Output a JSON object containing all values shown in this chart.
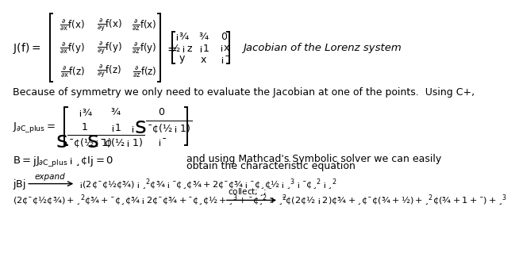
{
  "bg_color": "#ffffff",
  "title": "Jacobian of the Lorenz system",
  "line1_label": "$J(f)=$",
  "matrix1_entries": [
    [
      "$\\frac{\\partial}{\\partial x}f(x)$",
      "$\\frac{\\partial}{\\partial y}f(x)$",
      "$\\frac{\\partial}{\\partial z}f(x)$"
    ],
    [
      "$\\frac{\\partial}{\\partial x}f(y)$",
      "$\\frac{\\partial}{\\partial y}f(y)$",
      "$\\frac{\\partial}{\\partial z}f(y)$"
    ],
    [
      "$\\frac{\\partial}{\\partial x}f(z)$",
      "$\\frac{\\partial}{\\partial y}f(z)$",
      "$\\frac{\\partial}{\\partial z}f(z)$"
    ]
  ],
  "matrix2_entries": [
    [
      "$-\\sigma$",
      "$\\sigma$",
      "$0$"
    ],
    [
      "$\\rho-z$",
      "$-1$",
      "$-x$"
    ],
    [
      "$y$",
      "$x$",
      "$-\\beta$"
    ]
  ],
  "symmetry_text": "Because of symmetry we only need to evaluate the Jacobian at one of the points.  Using C+,",
  "jac_label": "$J_{\\partial C\\_plus}=$",
  "matrix3_entries": [
    [
      "$-\\sigma$",
      "$\\sigma$",
      "$0$"
    ],
    [
      "$1$",
      "$-1$",
      "$-\\sqrt{\\beta{\\cdot}(\\rho-1)}$"
    ],
    [
      "$\\sqrt{\\beta{\\cdot}(\\rho-1)}$",
      "$\\sqrt{\\beta{\\cdot}(\\rho-1)}$",
      "$-\\beta$"
    ]
  ],
  "B_eq": "$B=\\left|J_{\\partial C\\_plus}-\\lambda{\\cdot}I\\right|=0$",
  "solver_text1": "and using Mathcad's Symbolic solver we can easily",
  "solver_text2": "obtain the characteristic equation",
  "expand_label": "$|B|$",
  "expand_arrow_text": "expand",
  "expand_expr": "$-(2{\\cdot}\\beta{\\cdot}\\rho{\\cdot}\\sigma)-\\lambda^2{\\cdot}\\sigma-\\beta{\\cdot}\\lambda{\\cdot}\\sigma+2{\\cdot}\\beta{\\cdot}\\sigma-\\beta{\\cdot}\\lambda{\\cdot}\\rho-\\lambda^3-\\beta{\\cdot}\\lambda^2-\\lambda^2$",
  "collect_lhs": "$(2{\\cdot}\\beta{\\cdot}\\rho{\\cdot}\\sigma)+\\lambda^2{\\cdot}\\sigma+\\beta{\\cdot}\\lambda{\\cdot}\\sigma-2{\\cdot}\\beta{\\cdot}\\sigma+\\beta{\\cdot}\\lambda{\\cdot}\\rho+\\lambda^3+\\beta{\\cdot}\\lambda^2+\\lambda^2$",
  "collect_arrow_text": "collect , \\lambda , \\beta",
  "collect_rhs": "$\\beta{\\cdot}(2{\\cdot}\\rho-2){\\cdot}\\sigma+\\lambda{\\cdot}\\beta{\\cdot}(\\sigma+\\rho)+\\lambda^2{\\cdot}(\\sigma+1+\\beta)+\\lambda^3$"
}
